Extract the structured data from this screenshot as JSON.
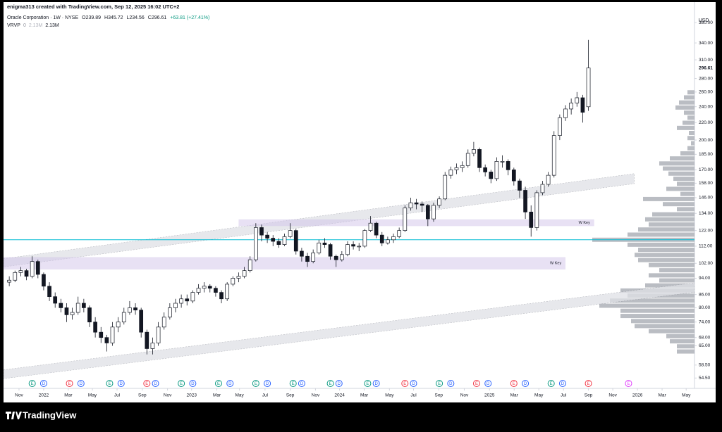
{
  "header": {
    "credit": "enigma313 created with TradingView.com, Sep 12, 2025 16:02 UTC+2",
    "brand": "TradingView"
  },
  "chart_data": {
    "type": "candlestick",
    "legend": {
      "symbol": "Oracle Corporation · 1W · NYSE",
      "ohlc": [
        "O239.89",
        "H345.72",
        "L234.56",
        "C296.61"
      ],
      "change": "+63.81 (+27.41%)",
      "indicator": "VRVP",
      "indicator_values": [
        "0",
        "2.13M",
        "2.13M"
      ]
    },
    "currency": "USD",
    "log_scale": true,
    "up_color": "#ffffff",
    "down_color": "#131722",
    "x": [
      1,
      3,
      5,
      7,
      9,
      11,
      13,
      15,
      17,
      19,
      21,
      23,
      25,
      27,
      29,
      31,
      33,
      35,
      37,
      39,
      41,
      43,
      45,
      47,
      49,
      51,
      53,
      55,
      57,
      59,
      61,
      63,
      65,
      67,
      69,
      71,
      73,
      75,
      77,
      79,
      81,
      83,
      85,
      87,
      89,
      91,
      93,
      95,
      97,
      99,
      101,
      103,
      105,
      107,
      109,
      111,
      113,
      115,
      117,
      119,
      121,
      123,
      125,
      127,
      129,
      131,
      133,
      135,
      137,
      139,
      141,
      143,
      145,
      147,
      149,
      151,
      153,
      155,
      157,
      159,
      161,
      163,
      165,
      167,
      169,
      171,
      173,
      175,
      177,
      179,
      181,
      183,
      185,
      187,
      189,
      191,
      193,
      195,
      197,
      199,
      201,
      203
    ],
    "candles": [
      [
        92,
        95,
        90,
        93
      ],
      [
        93,
        98,
        92,
        97
      ],
      [
        97,
        100,
        95,
        98
      ],
      [
        98,
        99,
        93,
        95
      ],
      [
        95,
        106,
        94,
        103
      ],
      [
        103,
        104,
        94,
        96
      ],
      [
        96,
        97,
        88,
        90
      ],
      [
        90,
        92,
        83,
        85
      ],
      [
        85,
        87,
        80,
        82
      ],
      [
        82,
        84,
        78,
        80
      ],
      [
        80,
        82,
        74,
        77
      ],
      [
        77,
        80,
        75,
        78
      ],
      [
        78,
        85,
        77,
        82
      ],
      [
        82,
        84,
        78,
        80
      ],
      [
        80,
        81,
        72,
        74
      ],
      [
        74,
        76,
        68,
        70
      ],
      [
        70,
        72,
        66,
        68
      ],
      [
        68,
        69,
        63,
        66
      ],
      [
        66,
        74,
        65,
        72
      ],
      [
        72,
        76,
        70,
        74
      ],
      [
        74,
        80,
        73,
        78
      ],
      [
        78,
        83,
        77,
        80
      ],
      [
        80,
        82,
        77,
        79
      ],
      [
        79,
        80,
        68,
        70
      ],
      [
        70,
        71,
        62,
        64
      ],
      [
        64,
        68,
        62,
        66
      ],
      [
        66,
        74,
        65,
        72
      ],
      [
        72,
        78,
        71,
        76
      ],
      [
        76,
        82,
        75,
        80
      ],
      [
        80,
        84,
        78,
        82
      ],
      [
        82,
        86,
        80,
        84
      ],
      [
        84,
        86,
        81,
        83
      ],
      [
        83,
        88,
        82,
        87
      ],
      [
        87,
        91,
        86,
        89
      ],
      [
        89,
        92,
        87,
        90
      ],
      [
        90,
        91,
        87,
        89
      ],
      [
        89,
        90,
        85,
        87
      ],
      [
        87,
        88,
        82,
        84
      ],
      [
        84,
        92,
        83,
        91
      ],
      [
        91,
        95,
        90,
        94
      ],
      [
        94,
        97,
        92,
        95
      ],
      [
        95,
        100,
        94,
        98
      ],
      [
        98,
        106,
        97,
        104
      ],
      [
        104,
        127,
        103,
        124
      ],
      [
        124,
        126,
        115,
        119
      ],
      [
        119,
        121,
        114,
        117
      ],
      [
        117,
        119,
        112,
        115
      ],
      [
        115,
        117,
        111,
        113
      ],
      [
        113,
        120,
        112,
        118
      ],
      [
        118,
        127,
        117,
        122
      ],
      [
        122,
        123,
        107,
        109
      ],
      [
        109,
        111,
        103,
        106
      ],
      [
        106,
        108,
        100,
        103
      ],
      [
        103,
        110,
        102,
        108
      ],
      [
        108,
        116,
        107,
        114
      ],
      [
        114,
        117,
        111,
        113
      ],
      [
        113,
        114,
        104,
        106
      ],
      [
        106,
        107,
        100,
        104
      ],
      [
        104,
        109,
        103,
        107
      ],
      [
        107,
        115,
        106,
        113
      ],
      [
        113,
        115,
        110,
        112
      ],
      [
        112,
        114,
        109,
        112
      ],
      [
        112,
        123,
        111,
        122
      ],
      [
        122,
        132,
        121,
        127
      ],
      [
        127,
        128,
        117,
        119
      ],
      [
        119,
        121,
        112,
        114
      ],
      [
        114,
        118,
        113,
        116
      ],
      [
        116,
        120,
        114,
        118
      ],
      [
        118,
        124,
        117,
        122
      ],
      [
        122,
        140,
        121,
        138
      ],
      [
        138,
        146,
        136,
        142
      ],
      [
        142,
        145,
        137,
        141
      ],
      [
        141,
        143,
        135,
        140
      ],
      [
        140,
        141,
        125,
        130
      ],
      [
        130,
        142,
        128,
        140
      ],
      [
        140,
        147,
        138,
        145
      ],
      [
        145,
        168,
        144,
        165
      ],
      [
        165,
        173,
        162,
        170
      ],
      [
        170,
        176,
        166,
        172
      ],
      [
        172,
        178,
        168,
        174
      ],
      [
        174,
        190,
        172,
        186
      ],
      [
        186,
        198,
        183,
        190
      ],
      [
        190,
        192,
        168,
        172
      ],
      [
        172,
        175,
        164,
        168
      ],
      [
        168,
        170,
        158,
        162
      ],
      [
        162,
        182,
        160,
        178
      ],
      [
        178,
        184,
        172,
        178
      ],
      [
        178,
        180,
        165,
        170
      ],
      [
        170,
        172,
        156,
        160
      ],
      [
        160,
        162,
        146,
        152
      ],
      [
        152,
        155,
        130,
        135
      ],
      [
        135,
        140,
        118,
        124
      ],
      [
        124,
        152,
        122,
        150
      ],
      [
        150,
        160,
        148,
        157
      ],
      [
        157,
        168,
        155,
        165
      ],
      [
        165,
        210,
        163,
        205
      ],
      [
        205,
        230,
        200,
        226
      ],
      [
        226,
        242,
        222,
        237
      ],
      [
        237,
        251,
        230,
        245
      ],
      [
        245,
        260,
        240,
        252
      ],
      [
        252,
        256,
        220,
        232.8
      ],
      [
        239.89,
        345.72,
        234.56,
        296.61
      ]
    ],
    "xlim": [
      -1,
      240
    ],
    "xticks": [
      {
        "value": 4.4,
        "label": "Nov"
      },
      {
        "value": 13,
        "label": "2022"
      },
      {
        "value": 21.6,
        "label": "Mar"
      },
      {
        "value": 30,
        "label": "May"
      },
      {
        "value": 38.6,
        "label": "Jul"
      },
      {
        "value": 47.4,
        "label": "Sep"
      },
      {
        "value": 56.2,
        "label": "Nov"
      },
      {
        "value": 64.6,
        "label": "2023"
      },
      {
        "value": 73.4,
        "label": "Mar"
      },
      {
        "value": 81.3,
        "label": "May"
      },
      {
        "value": 90.2,
        "label": "Jul"
      },
      {
        "value": 99,
        "label": "Sep"
      },
      {
        "value": 107.8,
        "label": "Nov"
      },
      {
        "value": 116.2,
        "label": "2024"
      },
      {
        "value": 124.8,
        "label": "Mar"
      },
      {
        "value": 133.6,
        "label": "May"
      },
      {
        "value": 142,
        "label": "Jul"
      },
      {
        "value": 150.8,
        "label": "Sep"
      },
      {
        "value": 159.7,
        "label": "Nov"
      },
      {
        "value": 168.5,
        "label": "2025"
      },
      {
        "value": 177.1,
        "label": "Mar"
      },
      {
        "value": 185.7,
        "label": "May"
      },
      {
        "value": 194.3,
        "label": "Jul"
      },
      {
        "value": 203,
        "label": "Sep"
      },
      {
        "value": 211.5,
        "label": "Nov"
      },
      {
        "value": 220.1,
        "label": "2026"
      },
      {
        "value": 228.7,
        "label": "Mar"
      },
      {
        "value": 237.1,
        "label": "May"
      }
    ],
    "ylim": [
      51.5,
      425
    ],
    "yticks": [
      {
        "value": 380,
        "label": "380.00"
      },
      {
        "value": 340,
        "label": "340.00"
      },
      {
        "value": 310,
        "label": "310.00"
      },
      {
        "value": 280,
        "label": "280.00"
      },
      {
        "value": 260,
        "label": "260.00"
      },
      {
        "value": 240,
        "label": "240.00"
      },
      {
        "value": 220,
        "label": "220.00"
      },
      {
        "value": 200,
        "label": "200.00"
      },
      {
        "value": 185,
        "label": "185.00"
      },
      {
        "value": 170,
        "label": "170.00"
      },
      {
        "value": 158,
        "label": "158.00"
      },
      {
        "value": 146,
        "label": "146.00"
      },
      {
        "value": 134,
        "label": "134.00"
      },
      {
        "value": 122,
        "label": "122.00"
      },
      {
        "value": 112,
        "label": "112.00"
      },
      {
        "value": 102,
        "label": "102.00"
      },
      {
        "value": 94,
        "label": "94.00"
      },
      {
        "value": 86,
        "label": "86.00"
      },
      {
        "value": 80,
        "label": "80.00"
      },
      {
        "value": 74,
        "label": "74.00"
      },
      {
        "value": 68,
        "label": "68.00"
      },
      {
        "value": 65,
        "label": "65.00"
      },
      {
        "value": 58.5,
        "label": "58.50"
      },
      {
        "value": 54.5,
        "label": "54.50"
      }
    ],
    "channels": [
      {
        "top": [
          [
            -1,
            104.6
          ],
          [
            219,
            166.5
          ]
        ],
        "bottom": [
          [
            -1,
            100
          ],
          [
            219,
            157.6
          ]
        ]
      },
      {
        "top": [
          [
            -1,
            57
          ],
          [
            240,
            91.7
          ]
        ],
        "bottom": [
          [
            -1,
            54.3
          ],
          [
            240,
            87.1
          ]
        ]
      }
    ],
    "zones": [
      {
        "from": 81,
        "to": 205,
        "high": 129.7,
        "low": 125,
        "label": "W Key"
      },
      {
        "from": -1,
        "to": 195,
        "high": 105.5,
        "low": 98.6,
        "label": "W Key"
      }
    ],
    "level": {
      "price": 116,
      "color": "#00bcd4"
    },
    "volume_profile": {
      "prices": [
        259.6,
        252.5,
        245.6,
        238.9,
        232.3,
        226,
        219.8,
        213.7,
        207.9,
        202.2,
        196.6,
        191.3,
        186,
        180.9,
        176,
        171.2,
        166.5,
        161.9,
        157.5,
        153.2,
        149,
        144.9,
        140.9,
        137.1,
        133.3,
        129.7,
        126.1,
        122.7,
        119.3,
        116,
        112.9,
        109.8,
        106.8,
        103.8,
        101,
        98.2,
        95.5,
        92.9,
        90.4,
        87.9,
        85.5,
        83.2,
        80.9,
        78.7,
        76.5,
        74.4,
        72.4,
        70.4,
        68.5,
        66.6,
        64.8,
        63
      ],
      "volumes": [
        10,
        15,
        22,
        27,
        15,
        10,
        17,
        25,
        8,
        10,
        5,
        10,
        20,
        35,
        50,
        45,
        37,
        30,
        25,
        40,
        20,
        73,
        45,
        25,
        60,
        70,
        65,
        80,
        95,
        145,
        95,
        80,
        85,
        80,
        65,
        50,
        65,
        50,
        70,
        105,
        95,
        120,
        135,
        105,
        105,
        90,
        85,
        65,
        40,
        35,
        25,
        25
      ]
    },
    "earnings_label": "E",
    "dividend_label": "D",
    "earnings": [
      {
        "x": 9,
        "color": "#089981"
      },
      {
        "x": 22,
        "color": "#f23645"
      },
      {
        "x": 36,
        "color": "#089981"
      },
      {
        "x": 49,
        "color": "#f23645"
      },
      {
        "x": 61,
        "color": "#089981"
      },
      {
        "x": 74,
        "color": "#089981"
      },
      {
        "x": 87,
        "color": "#089981"
      },
      {
        "x": 100,
        "color": "#089981"
      },
      {
        "x": 113,
        "color": "#089981"
      },
      {
        "x": 126,
        "color": "#089981"
      },
      {
        "x": 139,
        "color": "#f23645"
      },
      {
        "x": 151,
        "color": "#089981"
      },
      {
        "x": 164,
        "color": "#f23645"
      },
      {
        "x": 177,
        "color": "#f23645"
      },
      {
        "x": 190,
        "color": "#089981"
      },
      {
        "x": 203,
        "color": "#f23645"
      },
      {
        "x": 217,
        "color": "#e040fb"
      }
    ],
    "dividends": [
      13,
      26,
      40,
      52,
      65,
      78,
      91,
      103,
      116,
      129,
      142,
      155,
      168,
      181,
      194
    ]
  }
}
